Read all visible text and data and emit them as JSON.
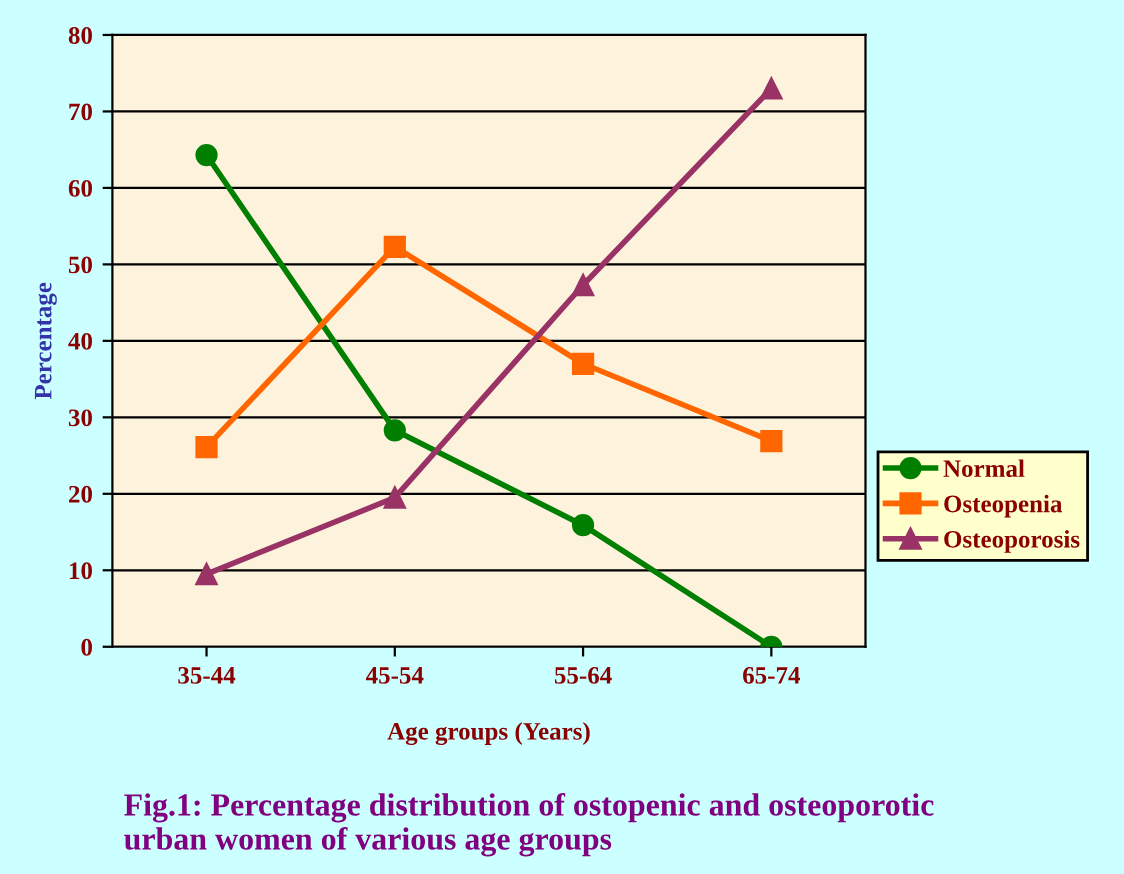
{
  "chart_data": {
    "type": "line",
    "title": "Fig.1: Percentage distribution of ostopenic and osteoporotic\nurban women of various age groups",
    "xlabel": "Age groups (Years)",
    "ylabel": "Percentage",
    "categories": [
      "35-44",
      "45-54",
      "55-64",
      "65-74"
    ],
    "series": [
      {
        "name": "Normal",
        "color": "#007f00",
        "marker": "circle",
        "values": [
          64.3,
          28.3,
          15.9,
          0
        ]
      },
      {
        "name": "Osteopenia",
        "color": "#ff6600",
        "marker": "square",
        "values": [
          26.1,
          52.3,
          37.0,
          26.9
        ]
      },
      {
        "name": "Osteoporosis",
        "color": "#993366",
        "marker": "triangle",
        "values": [
          9.5,
          19.5,
          47.3,
          73.0
        ]
      }
    ],
    "ylim": [
      0,
      80
    ],
    "yticks": [
      0,
      10,
      20,
      30,
      40,
      50,
      60,
      70,
      80
    ],
    "grid": "y",
    "legend": "right",
    "line_style": "solid"
  }
}
